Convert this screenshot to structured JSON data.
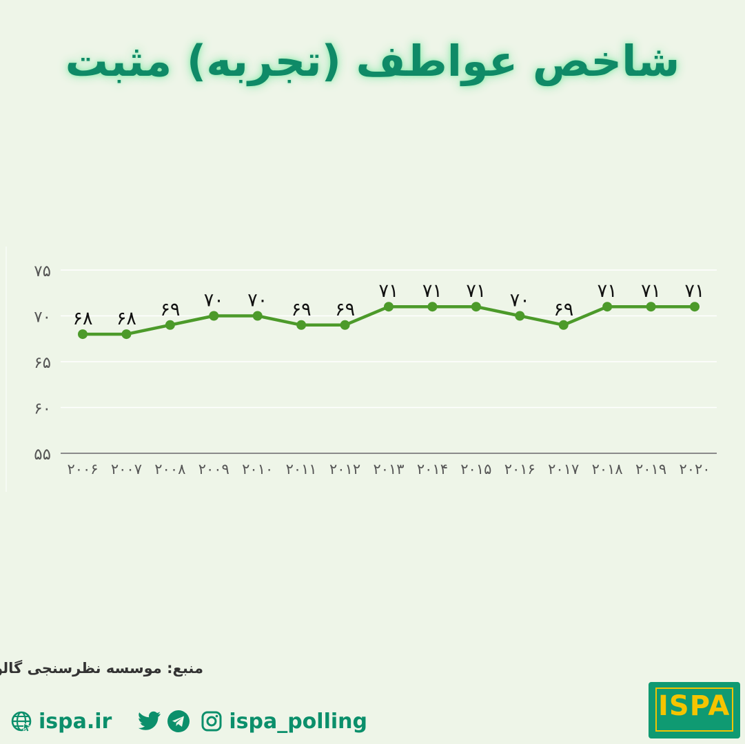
{
  "title": "شاخص عواطف (تجربه) مثبت",
  "source": "منبع: موسسه نظرسنجی گالوپ",
  "footer": {
    "website": "ispa.ir",
    "handle": "ispa_polling",
    "icons": [
      "globe-icon",
      "twitter-icon",
      "telegram-icon",
      "instagram-icon"
    ]
  },
  "logo": {
    "text": "ISPA"
  },
  "colors": {
    "background": "#eef5e8",
    "title": "#0f8a67",
    "line": "#4c9a2a",
    "footer": "#0b8f6b"
  },
  "chart_data": {
    "type": "line",
    "categories": [
      "۲۰۰۶",
      "۲۰۰۷",
      "۲۰۰۸",
      "۲۰۰۹",
      "۲۰۱۰",
      "۲۰۱۱",
      "۲۰۱۲",
      "۲۰۱۳",
      "۲۰۱۴",
      "۲۰۱۵",
      "۲۰۱۶",
      "۲۰۱۷",
      "۲۰۱۸",
      "۲۰۱۹",
      "۲۰۲۰"
    ],
    "values": [
      68,
      68,
      69,
      70,
      70,
      69,
      69,
      71,
      71,
      71,
      70,
      69,
      71,
      71,
      71
    ],
    "value_labels": [
      "۶۸",
      "۶۸",
      "۶۹",
      "۷۰",
      "۷۰",
      "۶۹",
      "۶۹",
      "۷۱",
      "۷۱",
      "۷۱",
      "۷۰",
      "۶۹",
      "۷۱",
      "۷۱",
      "۷۱"
    ],
    "yticks": [
      55,
      60,
      65,
      70,
      75
    ],
    "ytick_labels": [
      "۵۵",
      "۶۰",
      "۶۵",
      "۷۰",
      "۷۵"
    ],
    "ylim": [
      55,
      75
    ],
    "grid": true,
    "legend": "none"
  }
}
